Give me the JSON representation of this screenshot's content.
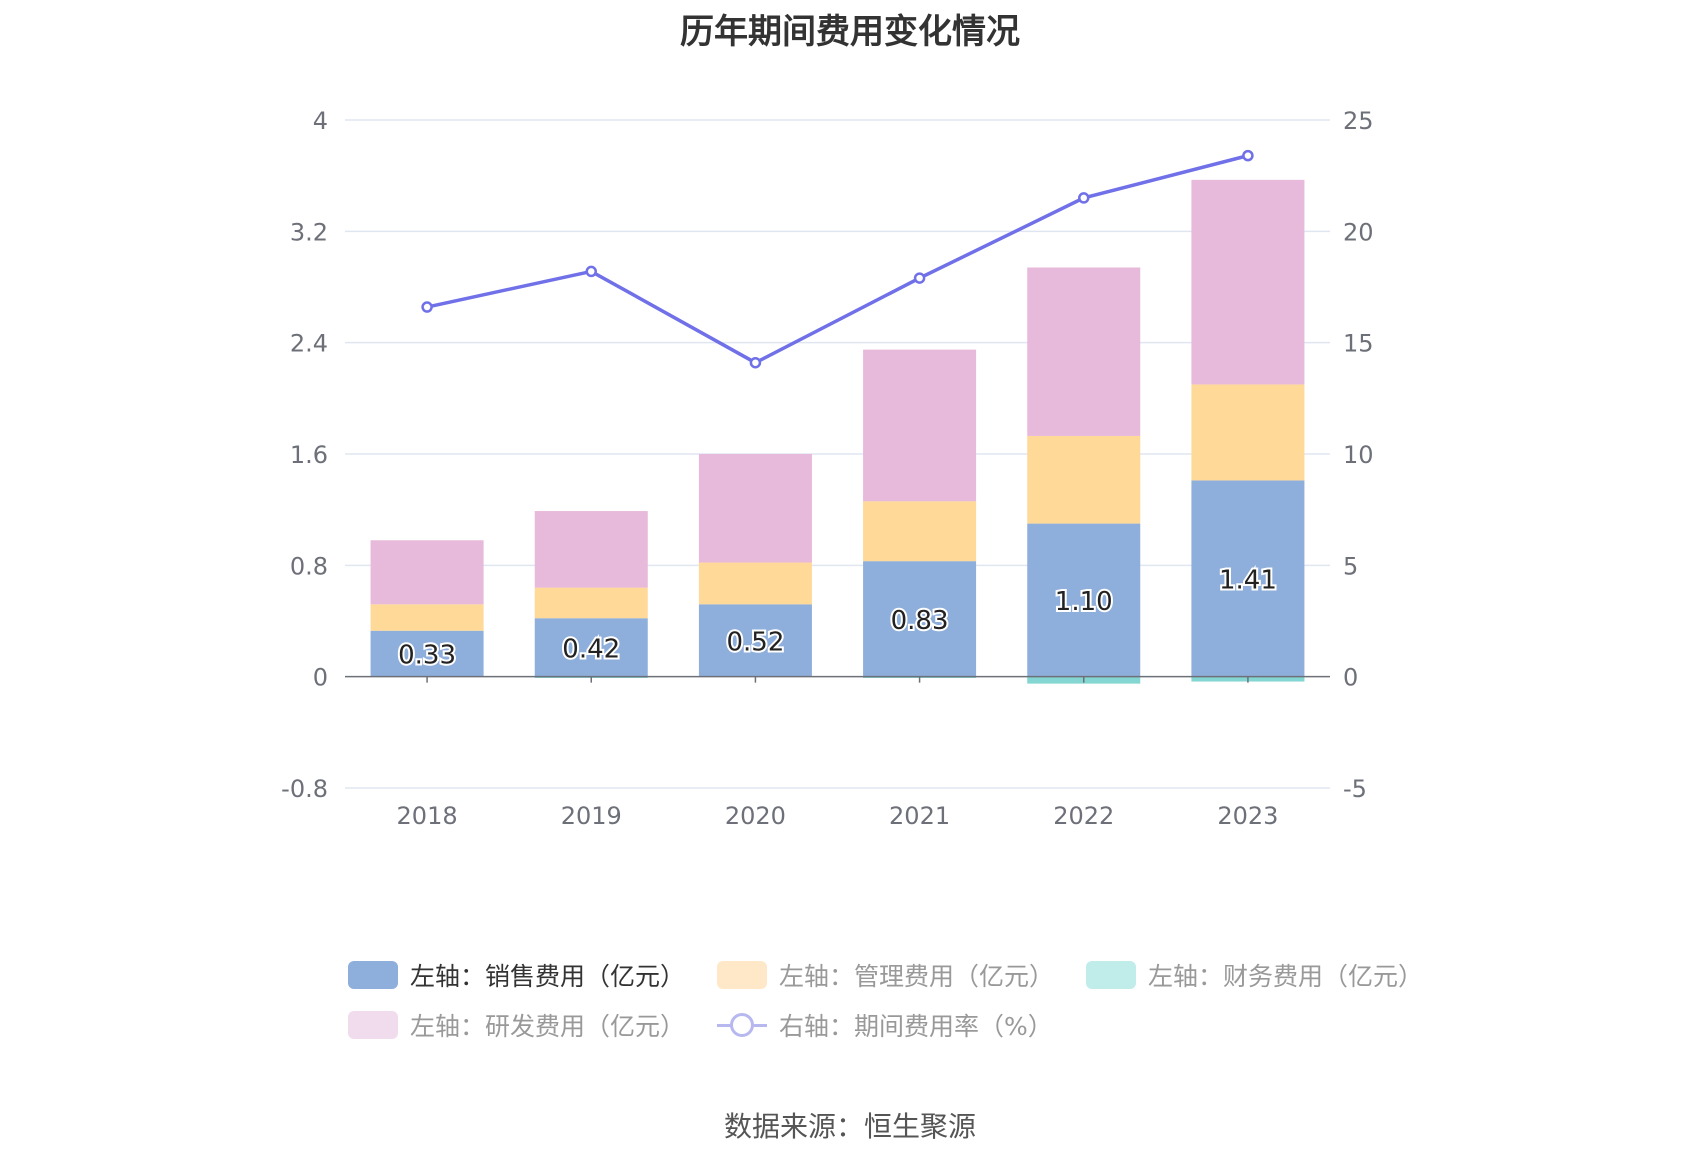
{
  "title": "历年期间费用变化情况",
  "source": "数据来源：恒生聚源",
  "chart_data": {
    "type": "bar",
    "stacked": true,
    "categories": [
      "2018",
      "2019",
      "2020",
      "2021",
      "2022",
      "2023"
    ],
    "left_axis": {
      "ticks": [
        "4",
        "3.2",
        "2.4",
        "1.6",
        "0.8",
        "0",
        "-0.8"
      ],
      "ylim": [
        -0.8,
        4
      ]
    },
    "right_axis": {
      "ticks": [
        "25",
        "20",
        "15",
        "10",
        "5",
        "0",
        "-5"
      ],
      "ylim": [
        -5,
        25
      ]
    },
    "grid": true,
    "series": [
      {
        "name": "左轴：销售费用（亿元）",
        "type": "bar",
        "axis": "left",
        "color": "#8eaedb",
        "values": [
          0.33,
          0.42,
          0.52,
          0.83,
          1.1,
          1.41
        ],
        "labels": [
          "0.33",
          "0.42",
          "0.52",
          "0.83",
          "1.10",
          "1.41"
        ]
      },
      {
        "name": "左轴：管理费用（亿元）",
        "type": "bar",
        "axis": "left",
        "color": "#fed998",
        "values": [
          0.19,
          0.22,
          0.3,
          0.43,
          0.63,
          0.69
        ]
      },
      {
        "name": "左轴：财务费用（亿元）",
        "type": "bar",
        "axis": "left",
        "color": "#83d6d2",
        "values": [
          0.0,
          0.005,
          0.0,
          0.005,
          -0.05,
          -0.035
        ]
      },
      {
        "name": "左轴：研发费用（亿元）",
        "type": "bar",
        "axis": "left",
        "color": "#e7b9da",
        "values": [
          0.46,
          0.55,
          0.78,
          1.09,
          1.21,
          1.47
        ]
      },
      {
        "name": "右轴：期间费用率（%）",
        "type": "line",
        "axis": "right",
        "color": "#7070e8",
        "values": [
          16.6,
          18.2,
          14.1,
          17.9,
          21.5,
          23.4
        ]
      }
    ],
    "legend_position": "bottom"
  },
  "legend_colors": [
    "#8eaedb",
    "#fee8c8",
    "#c0ecea",
    "#f0dcec",
    "#b8b8f0"
  ]
}
